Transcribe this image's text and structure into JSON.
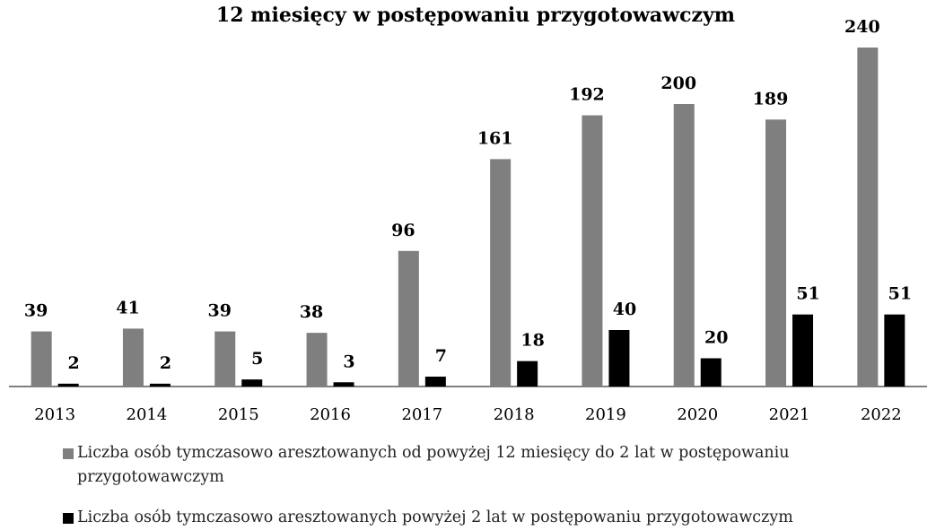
{
  "chart_data": {
    "type": "bar",
    "title": "12 miesięcy w postępowaniu przygotowawczym",
    "categories": [
      "2013",
      "2014",
      "2015",
      "2016",
      "2017",
      "2018",
      "2019",
      "2020",
      "2021",
      "2022"
    ],
    "series": [
      {
        "name": "Liczba osób tymczasowo aresztowanych od powyżej 12 miesięcy do 2 lat w postępowaniu przygotowawczym",
        "color": "#7f7f7f",
        "values": [
          39,
          41,
          39,
          38,
          96,
          161,
          192,
          200,
          189,
          240
        ]
      },
      {
        "name": "Liczba osób tymczasowo aresztowanych powyżej 2 lat w postępowaniu przygotowawczym",
        "color": "#000000",
        "values": [
          2,
          2,
          5,
          3,
          7,
          18,
          40,
          20,
          51,
          51
        ]
      }
    ],
    "ylim": [
      0,
      240
    ]
  }
}
